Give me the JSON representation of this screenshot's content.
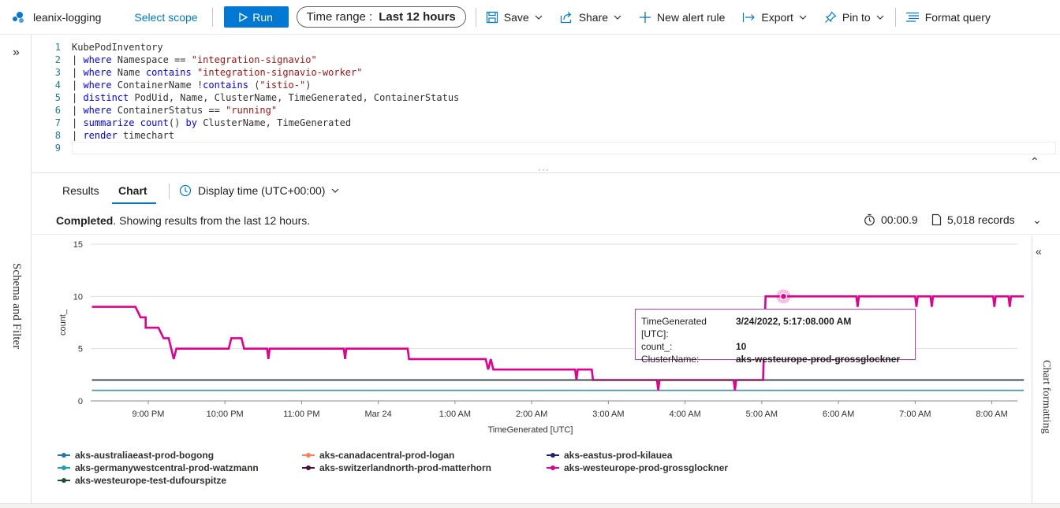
{
  "toolbar": {
    "workspace": "leanix-logging",
    "select_scope": "Select scope",
    "run": "Run",
    "time_range_label": "Time range :",
    "time_range_value": "Last 12 hours",
    "save": "Save",
    "share": "Share",
    "new_alert_rule": "New alert rule",
    "export": "Export",
    "pin_to": "Pin to",
    "format_query": "Format query"
  },
  "sidebar": {
    "schema_filter": "Schema and Filter"
  },
  "editor": {
    "lines": [
      {
        "n": "1",
        "tokens": [
          {
            "t": "KubePodInventory",
            "c": "plain"
          }
        ]
      },
      {
        "n": "2",
        "tokens": [
          {
            "t": "| ",
            "c": "plain"
          },
          {
            "t": "where",
            "c": "kw"
          },
          {
            "t": " Namespace == ",
            "c": "plain"
          },
          {
            "t": "\"integration-signavio\"",
            "c": "str"
          }
        ]
      },
      {
        "n": "3",
        "tokens": [
          {
            "t": "| ",
            "c": "plain"
          },
          {
            "t": "where",
            "c": "kw"
          },
          {
            "t": " Name ",
            "c": "plain"
          },
          {
            "t": "contains",
            "c": "kw"
          },
          {
            "t": " ",
            "c": "plain"
          },
          {
            "t": "\"integration-signavio-worker\"",
            "c": "str"
          }
        ]
      },
      {
        "n": "4",
        "tokens": [
          {
            "t": "| ",
            "c": "plain"
          },
          {
            "t": "where",
            "c": "kw"
          },
          {
            "t": " ContainerName !",
            "c": "plain"
          },
          {
            "t": "contains",
            "c": "kw"
          },
          {
            "t": " (",
            "c": "plain"
          },
          {
            "t": "\"istio-\"",
            "c": "str"
          },
          {
            "t": ")",
            "c": "plain"
          }
        ]
      },
      {
        "n": "5",
        "tokens": [
          {
            "t": "| ",
            "c": "plain"
          },
          {
            "t": "distinct",
            "c": "kw"
          },
          {
            "t": " PodUid, Name, ClusterName, TimeGenerated, ContainerStatus",
            "c": "plain"
          }
        ]
      },
      {
        "n": "6",
        "tokens": [
          {
            "t": "| ",
            "c": "plain"
          },
          {
            "t": "where",
            "c": "kw"
          },
          {
            "t": " ContainerStatus == ",
            "c": "plain"
          },
          {
            "t": "\"running\"",
            "c": "str"
          }
        ]
      },
      {
        "n": "7",
        "tokens": [
          {
            "t": "| ",
            "c": "plain"
          },
          {
            "t": "summarize",
            "c": "kw"
          },
          {
            "t": " ",
            "c": "plain"
          },
          {
            "t": "count",
            "c": "kw"
          },
          {
            "t": "() ",
            "c": "plain"
          },
          {
            "t": "by",
            "c": "kw"
          },
          {
            "t": " ClusterName, TimeGenerated",
            "c": "plain"
          }
        ]
      },
      {
        "n": "8",
        "tokens": [
          {
            "t": "| ",
            "c": "plain"
          },
          {
            "t": "render",
            "c": "kw"
          },
          {
            "t": " timechart ",
            "c": "plain"
          }
        ]
      },
      {
        "n": "9",
        "tokens": []
      }
    ]
  },
  "results": {
    "tabs": [
      "Results",
      "Chart"
    ],
    "active_tab": "Chart",
    "display_time": "Display time (UTC+00:00)",
    "status_bold": "Completed",
    "status_rest": ". Showing results from the last 12 hours.",
    "duration": "00:00.9",
    "records": "5,018 records"
  },
  "tooltip": {
    "k1": "TimeGenerated [UTC]:",
    "v1": "3/24/2022, 5:17:08.000 AM",
    "k2": "count_:",
    "v2": "10",
    "k3": "ClusterName:",
    "v3": "aks-westeurope-prod-grossglockner"
  },
  "right_panel": {
    "chart_formatting": "Chart formatting"
  },
  "chart_data": {
    "type": "line",
    "xlabel": "TimeGenerated [UTC]",
    "ylabel": "count_",
    "ylim": [
      0,
      15
    ],
    "yticks": [
      "0",
      "5",
      "10",
      "15"
    ],
    "x_range": [
      -15,
      710
    ],
    "xticks": [
      {
        "t": 30,
        "label": "9:00 PM"
      },
      {
        "t": 90,
        "label": "10:00 PM"
      },
      {
        "t": 150,
        "label": "11:00 PM"
      },
      {
        "t": 210,
        "label": "Mar 24"
      },
      {
        "t": 270,
        "label": "1:00 AM"
      },
      {
        "t": 330,
        "label": "2:00 AM"
      },
      {
        "t": 390,
        "label": "3:00 AM"
      },
      {
        "t": 450,
        "label": "4:00 AM"
      },
      {
        "t": 510,
        "label": "5:00 AM"
      },
      {
        "t": 570,
        "label": "6:00 AM"
      },
      {
        "t": 630,
        "label": "7:00 AM"
      },
      {
        "t": 690,
        "label": "8:00 AM"
      }
    ],
    "x_unit": "minutes after 8:00 PM UTC on Mar 23, 2022",
    "legend_placement": "bottom",
    "series": [
      {
        "name": "aks-australiaeast-prod-bogong",
        "color": "#1f77b4",
        "points": [
          [
            -14,
            1
          ],
          [
            715,
            1
          ]
        ]
      },
      {
        "name": "aks-canadacentral-prod-logan",
        "color": "#ff7f50",
        "points": [
          [
            -14,
            1
          ],
          [
            715,
            1
          ]
        ]
      },
      {
        "name": "aks-eastus-prod-kilauea",
        "color": "#1a237e",
        "points": [
          [
            -14,
            2
          ],
          [
            715,
            2
          ]
        ]
      },
      {
        "name": "aks-germanywestcentral-prod-watzmann",
        "color": "#17a2b8",
        "points": [
          [
            -14,
            1
          ],
          [
            715,
            1
          ]
        ]
      },
      {
        "name": "aks-switzerlandnorth-prod-matterhorn",
        "color": "#4a1040",
        "points": [
          [
            -14,
            2
          ],
          [
            715,
            2
          ]
        ]
      },
      {
        "name": "aks-westeurope-prod-grossglockner",
        "color": "#e3008c",
        "points": [
          [
            -14,
            9
          ],
          [
            20,
            9
          ],
          [
            24,
            8
          ],
          [
            28,
            8
          ],
          [
            28,
            7
          ],
          [
            38,
            7
          ],
          [
            42,
            6
          ],
          [
            46,
            6
          ],
          [
            48,
            5
          ],
          [
            50,
            4
          ],
          [
            52,
            5
          ],
          [
            93,
            5
          ],
          [
            95,
            6
          ],
          [
            103,
            6
          ],
          [
            105,
            5
          ],
          [
            123,
            5
          ],
          [
            124,
            4
          ],
          [
            125,
            5
          ],
          [
            183,
            5
          ],
          [
            184,
            4
          ],
          [
            185,
            5
          ],
          [
            233,
            5
          ],
          [
            234,
            4
          ],
          [
            294,
            4
          ],
          [
            296,
            3
          ],
          [
            298,
            4
          ],
          [
            300,
            3
          ],
          [
            364,
            3
          ],
          [
            365,
            2
          ],
          [
            366,
            3
          ],
          [
            377,
            3
          ],
          [
            378,
            2
          ],
          [
            428,
            2
          ],
          [
            429,
            1
          ],
          [
            430,
            2
          ],
          [
            488,
            2
          ],
          [
            489,
            1
          ],
          [
            490,
            2
          ],
          [
            511,
            2
          ],
          [
            513,
            10
          ],
          [
            584,
            10
          ],
          [
            585,
            9
          ],
          [
            586,
            10
          ],
          [
            630,
            10
          ],
          [
            631,
            9
          ],
          [
            632,
            10
          ],
          [
            642,
            10
          ],
          [
            643,
            9
          ],
          [
            644,
            10
          ],
          [
            691,
            10
          ],
          [
            692,
            9
          ],
          [
            693,
            10
          ],
          [
            703,
            10
          ],
          [
            704,
            9
          ],
          [
            705,
            10
          ],
          [
            715,
            10
          ]
        ]
      },
      {
        "name": "aks-westeurope-test-dufourspitze",
        "color": "#1e4d3a",
        "points": [
          [
            -14,
            2
          ],
          [
            715,
            2
          ]
        ]
      }
    ],
    "highlight": {
      "t": 527,
      "y": 10
    }
  }
}
